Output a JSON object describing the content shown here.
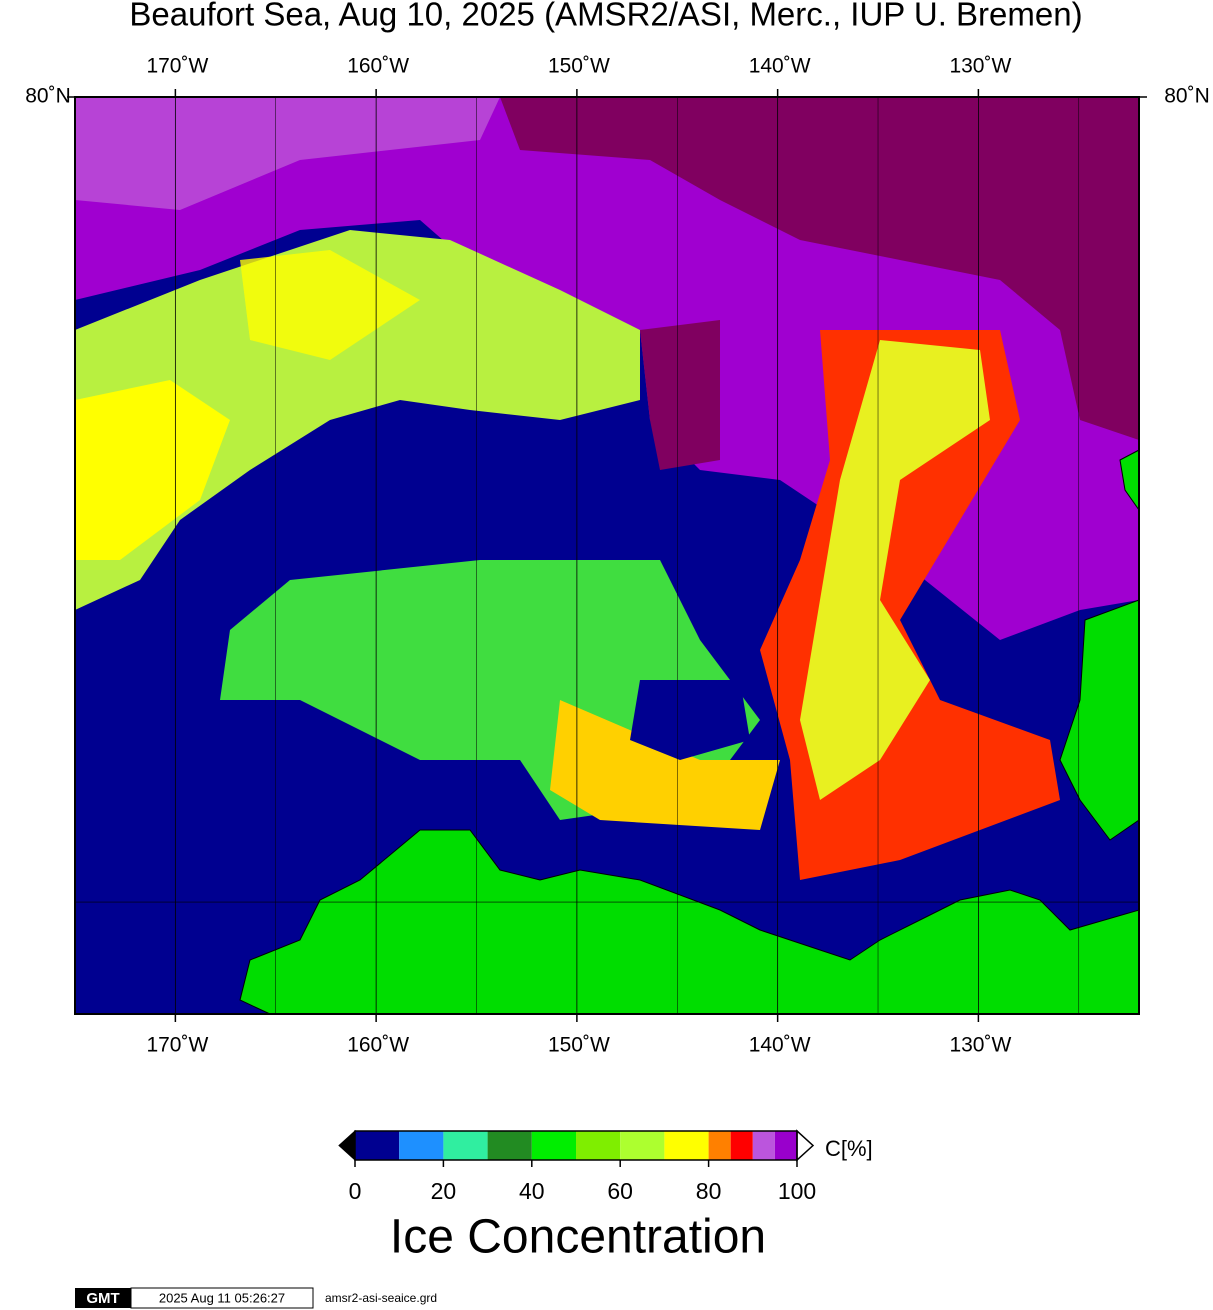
{
  "title": "Beaufort Sea, Aug 10, 2025 (AMSR2/ASI, Merc., IUP U. Bremen)",
  "map": {
    "lonlim": [
      -175,
      -122
    ],
    "latlim": [
      68,
      80
    ],
    "lon_ticks": [
      {
        "value": -170,
        "label": "170˚W"
      },
      {
        "value": -160,
        "label": "160˚W"
      },
      {
        "value": -150,
        "label": "150˚W"
      },
      {
        "value": -140,
        "label": "140˚W"
      },
      {
        "value": -130,
        "label": "130˚W"
      }
    ],
    "lon_minor": [
      -165,
      -155,
      -145,
      -135,
      -125
    ],
    "lat_ticks": [
      {
        "value": 80,
        "label": "80˚N"
      }
    ],
    "lat_grid": [
      70
    ],
    "ocean_color": "#000090",
    "land_color": "#00dd00"
  },
  "colorbar": {
    "label": "C[%]",
    "title": "Ice Concentration",
    "bins": [
      0,
      10,
      20,
      30,
      40,
      50,
      60,
      70,
      80,
      85,
      90,
      95,
      100
    ],
    "colors": [
      "#000090",
      "#1e90ff",
      "#30eea0",
      "#228b22",
      "#00ee00",
      "#7fee00",
      "#adff2f",
      "#ffff00",
      "#ff8000",
      "#ff0000",
      "#bb55dd",
      "#9900cc"
    ],
    "ticks": [
      0,
      20,
      40,
      60,
      80,
      100
    ],
    "under_color": "#000000",
    "over_color": "#ffffff"
  },
  "footer": {
    "logo": "GMT",
    "timestamp": "2025 Aug 11 05:26:27",
    "file": "amsr2-asi-seaice.grd"
  }
}
